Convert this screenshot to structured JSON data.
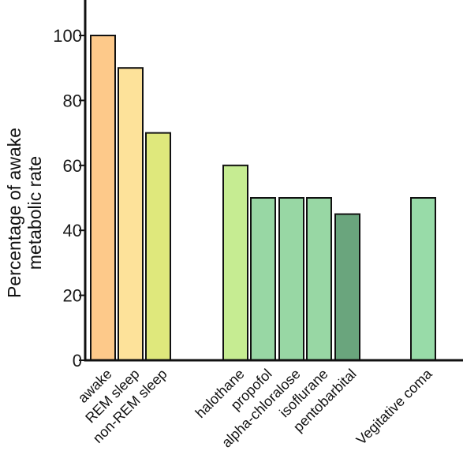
{
  "chart_data": {
    "type": "bar",
    "ylabel_lines": [
      "Percentage of awake",
      "metabolic rate"
    ],
    "ylim": [
      0,
      110
    ],
    "yticks": [
      0,
      20,
      40,
      60,
      80,
      100
    ],
    "grid": false,
    "bars": [
      {
        "category": "awake",
        "value": 100,
        "color": "#fdc98a"
      },
      {
        "category": "REM sleep",
        "value": 90,
        "color": "#fde29a"
      },
      {
        "category": "non-REM sleep",
        "value": 70,
        "color": "#dfe87c"
      },
      {
        "category": "halothane",
        "value": 60,
        "color": "#c6ec92"
      },
      {
        "category": "propofol",
        "value": 50,
        "color": "#98d7a4"
      },
      {
        "category": "alpha-chloralose",
        "value": 50,
        "color": "#98d7a4"
      },
      {
        "category": "isoflurane",
        "value": 50,
        "color": "#98d7a4"
      },
      {
        "category": "pentobarbital",
        "value": 45,
        "color": "#6aa57d"
      },
      {
        "category": "Vegitative coma",
        "value": 50,
        "color": "#98dba8"
      }
    ]
  }
}
